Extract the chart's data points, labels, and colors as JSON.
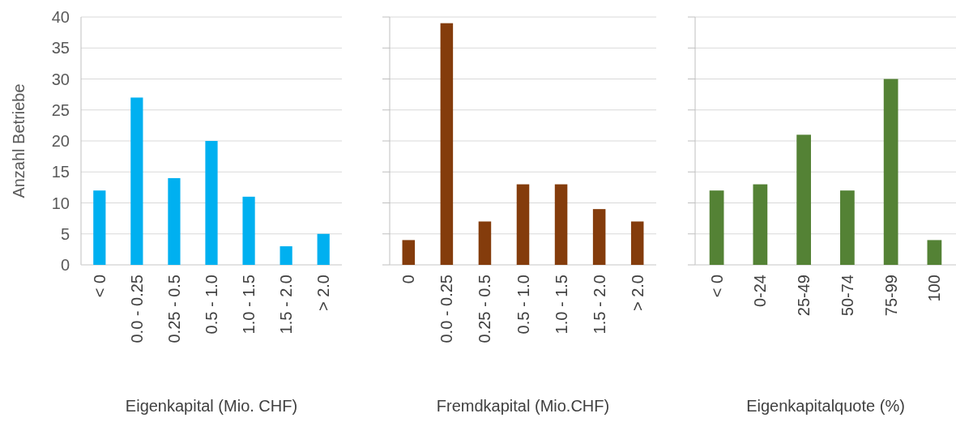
{
  "chart_data": [
    {
      "type": "bar",
      "xlabel": "Eigenkapital (Mio. CHF)",
      "ylabel": "Anzahl Betriebe",
      "categories": [
        "< 0",
        "0.0 - 0.25",
        "0.25 - 0.5",
        "0.5 - 1.0",
        "1.0 - 1.5",
        "1.5 - 2.0",
        "> 2.0"
      ],
      "values": [
        12,
        27,
        14,
        20,
        11,
        3,
        5
      ],
      "color": "#00b0f0",
      "ylim": [
        0,
        40
      ],
      "yticks": [
        0,
        5,
        10,
        15,
        20,
        25,
        30,
        35,
        40
      ],
      "grid": "y"
    },
    {
      "type": "bar",
      "xlabel": "Fremdkapital (Mio.CHF)",
      "categories": [
        "0",
        "0.0 - 0.25",
        "0.25 - 0.5",
        "0.5 - 1.0",
        "1.0 - 1.5",
        "1.5 - 2.0",
        "> 2.0"
      ],
      "values": [
        4,
        39,
        7,
        13,
        13,
        9,
        7
      ],
      "color": "#843c0c",
      "ylim": [
        0,
        40
      ],
      "yticks": [
        0,
        5,
        10,
        15,
        20,
        25,
        30,
        35,
        40
      ],
      "grid": "y",
      "tick_labels": "x"
    },
    {
      "type": "bar",
      "xlabel": "Eigenkapitalquote (%)",
      "categories": [
        "< 0",
        "0-24",
        "25-49",
        "50-74",
        "75-99",
        "100"
      ],
      "values": [
        12,
        13,
        21,
        12,
        30,
        4
      ],
      "color": "#548235",
      "ylim": [
        0,
        40
      ],
      "yticks": [
        0,
        5,
        10,
        15,
        20,
        25,
        30,
        35,
        40
      ],
      "grid": "y",
      "tick_labels": "x"
    }
  ]
}
